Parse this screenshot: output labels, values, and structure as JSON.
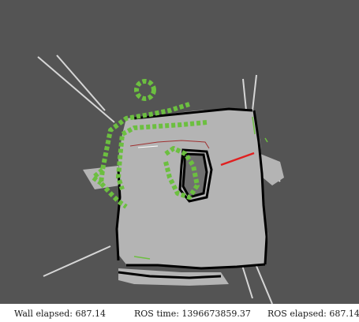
{
  "window": {
    "view_name": "rviz-map-view"
  },
  "status": {
    "wall_elapsed_label": "Wall elapsed:",
    "wall_elapsed_value": "687.14",
    "ros_time_label": "ROS time:",
    "ros_time_value": "1396673859.37",
    "ros_elapsed_label": "ROS elapsed:",
    "ros_elapsed_value": "687.14"
  },
  "colors": {
    "background": "#545454",
    "free_space": "#b4b4b4",
    "occupied": "#000000",
    "path": "#6cbf40",
    "laser": "#e02020",
    "trajectory": "#a03030"
  }
}
